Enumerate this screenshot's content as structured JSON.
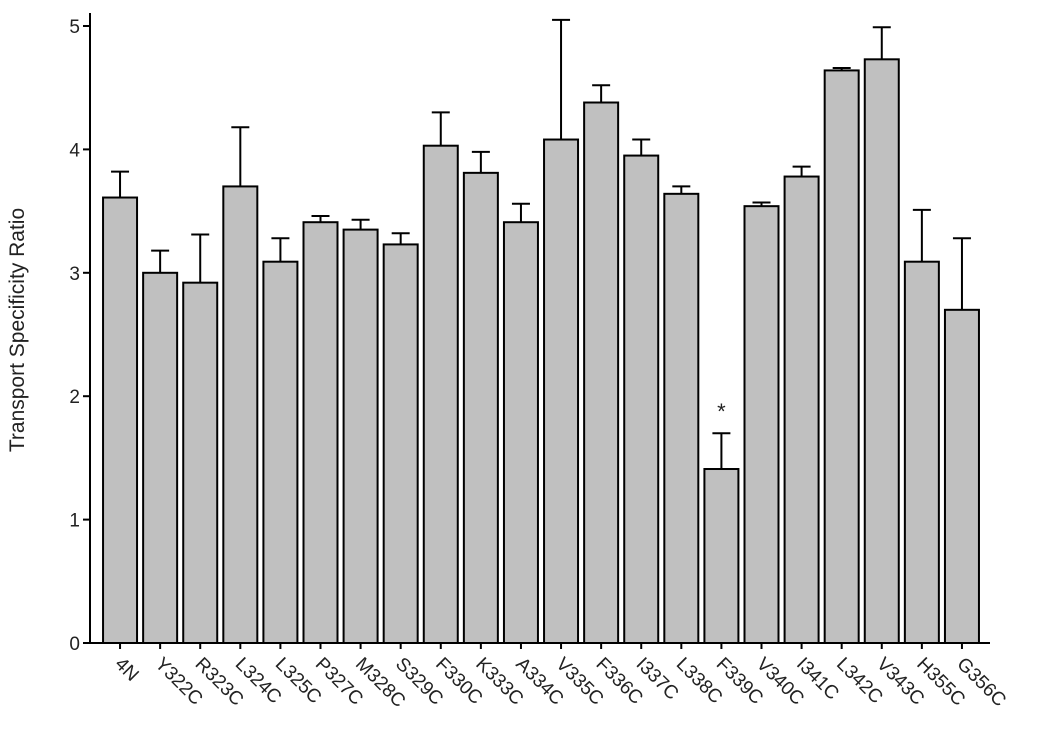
{
  "chart_data": {
    "type": "bar",
    "y_label": "Transport Specificity Ratio",
    "categories": [
      "4N",
      "Y322C",
      "R323C",
      "L324C",
      "L325C",
      "P327C",
      "M328C",
      "S329C",
      "F330C",
      "K333C",
      "A334C",
      "V335C",
      "F336C",
      "I337C",
      "L338C",
      "F339C",
      "V340C",
      "I341C",
      "L342C",
      "V343C",
      "H355C",
      "G356C"
    ],
    "values": [
      3.61,
      3.0,
      2.92,
      3.7,
      3.09,
      3.41,
      3.35,
      3.23,
      4.03,
      3.81,
      3.41,
      4.08,
      4.38,
      3.95,
      3.64,
      1.41,
      3.54,
      3.78,
      4.64,
      4.73,
      3.09,
      2.7
    ],
    "errors": [
      0.21,
      0.18,
      0.39,
      0.48,
      0.19,
      0.05,
      0.08,
      0.09,
      0.27,
      0.17,
      0.15,
      0.97,
      0.14,
      0.13,
      0.06,
      0.29,
      0.03,
      0.08,
      0.02,
      0.26,
      0.42,
      0.58
    ],
    "color": "#c0c0c0",
    "ylim": [
      0,
      5.1
    ],
    "yticks": [
      0,
      1,
      2,
      3,
      4,
      5
    ],
    "annotations": [
      {
        "text": "*",
        "x": "F339C"
      }
    ]
  }
}
